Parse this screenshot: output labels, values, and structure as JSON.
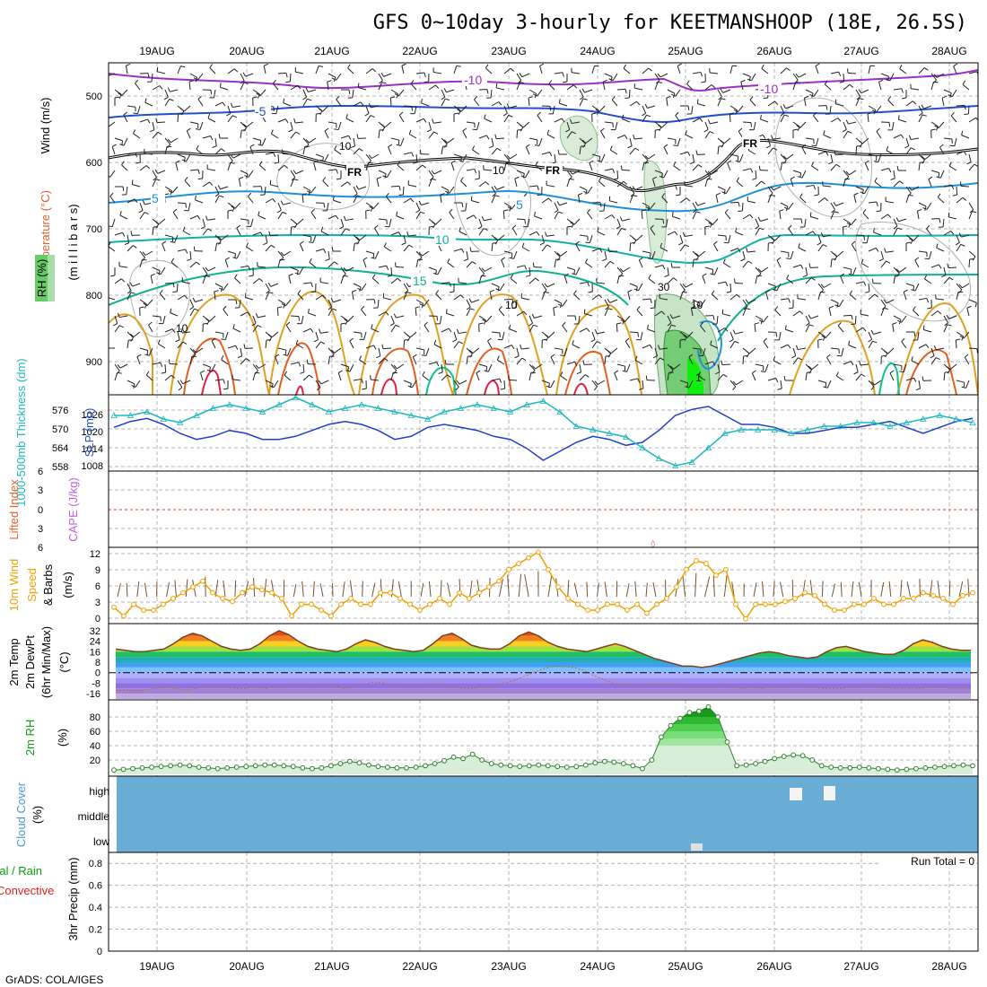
{
  "title": "GFS 0~10day 3-hourly for KEETMANSHOOP (18E, 26.5S)",
  "footer": "GrADS: COLA/IGES",
  "dates": [
    "19AUG",
    "20AUG",
    "21AUG",
    "22AUG",
    "23AUG",
    "24AUG",
    "25AUG",
    "26AUG",
    "27AUG",
    "28AUG"
  ],
  "colors": {
    "red": "#e02020",
    "green": "#10c010",
    "blue": "#1040e0",
    "purple": "#c060e0",
    "orange": "#f0a000",
    "cyan": "#20b8c0",
    "cloud": "#6aaed6"
  },
  "panels": {
    "upper": {
      "ylabel_wind": "Wind (m/s)",
      "ylabel_temp": "Temperature (°C)",
      "ylabel_rh": "RH (%)",
      "ylabel_mb": "(m i l l i b a r s)",
      "yticks": [
        "500",
        "600",
        "700",
        "800",
        "900"
      ],
      "contour_labels": [
        "-10",
        "-10",
        "-5",
        "5",
        "5",
        "10",
        "15",
        "FR",
        "FR",
        "FR",
        "10",
        "10",
        "10",
        "30",
        "10",
        "10",
        "1"
      ]
    },
    "thick": {
      "ylabel_left": "1000-500mb Thickness (dm)",
      "ylabel_right": "SLP (mb)",
      "yticks_left": [
        "576",
        "570",
        "564",
        "558"
      ],
      "yticks_right": [
        "1026",
        "1020",
        "1014",
        "1008"
      ]
    },
    "li": {
      "ylabel_left": "Lifted Index",
      "ylabel_right": "CAPE (J/kg)",
      "yticks": [
        "6",
        "3",
        "0",
        "3",
        "6"
      ]
    },
    "wind": {
      "ylabel_1": "10m Wind",
      "ylabel_2": "Speed",
      "ylabel_3": "& Barbs",
      "ylabel_units": "(m/s)",
      "yticks": [
        "12",
        "9",
        "6",
        "3",
        "0"
      ]
    },
    "temp": {
      "ylabel_1": "2m Temp",
      "ylabel_2": "2m DewPt",
      "ylabel_3": "(6hr Min/Max)",
      "ylabel_units": "(°C)",
      "yticks": [
        "32",
        "24",
        "16",
        "8",
        "0",
        "-8",
        "-16"
      ]
    },
    "rh": {
      "ylabel": "2m RH",
      "ylabel_units": "(%)",
      "yticks": [
        "80",
        "60",
        "40",
        "20"
      ]
    },
    "cloud": {
      "ylabel": "Cloud Cover",
      "ylabel_units": "(%)",
      "levels": [
        "high",
        "middle",
        "low"
      ]
    },
    "precip": {
      "ylabel_1": "Total / Rain",
      "ylabel_2": "Convective",
      "ylabel_3": "3hr Precip (mm)",
      "yticks": [
        "0.8",
        "0.6",
        "0.4",
        "0.2",
        "0"
      ],
      "run_total": "Run Total = 0"
    }
  },
  "chart_data": [
    {
      "type": "line",
      "title": "1000-500mb Thickness (dm) and SLP (mb)",
      "x": "time (3-hourly, 19AUG-28AUG)",
      "series": [
        {
          "name": "1000-500mb Thickness (dm)",
          "ylim": [
            557,
            577
          ],
          "values": [
            572,
            572,
            573,
            571,
            570,
            572,
            574,
            575,
            574,
            573,
            575,
            577,
            575,
            573,
            574,
            575,
            574,
            573,
            572,
            571,
            573,
            574,
            575,
            574,
            573,
            575,
            576,
            573,
            569,
            568,
            567,
            566,
            563,
            560,
            558,
            559,
            563,
            567,
            568,
            568,
            568,
            567,
            568,
            569,
            569,
            570,
            570,
            569,
            570,
            571,
            572,
            571,
            570
          ]
        },
        {
          "name": "SLP (mb)",
          "ylim": [
            1006,
            1030
          ],
          "values": [
            1020,
            1022,
            1023,
            1021,
            1018,
            1016,
            1017,
            1019,
            1018,
            1016,
            1016,
            1017,
            1019,
            1021,
            1022,
            1021,
            1019,
            1016,
            1017,
            1020,
            1021,
            1020,
            1019,
            1017,
            1016,
            1013,
            1009,
            1012,
            1015,
            1017,
            1016,
            1014,
            1015,
            1019,
            1024,
            1026,
            1027,
            1024,
            1021,
            1021,
            1020,
            1018,
            1018,
            1019,
            1020,
            1020,
            1021,
            1022,
            1020,
            1018,
            1020,
            1022,
            1023
          ]
        }
      ]
    },
    {
      "type": "line",
      "title": "10m Wind Speed (m/s)",
      "ylim": [
        0,
        12.5
      ],
      "values": [
        2.5,
        1,
        3,
        2,
        2,
        3,
        4,
        5,
        6,
        7,
        5,
        4,
        3.5,
        5,
        6,
        5.5,
        5,
        4,
        1,
        3,
        3,
        2,
        1,
        3,
        4,
        3,
        3,
        5,
        5,
        4,
        3,
        2,
        3,
        4,
        3,
        5,
        4,
        5,
        6,
        7,
        9,
        10,
        11,
        12,
        9,
        6,
        4,
        3,
        2,
        2,
        3,
        3,
        2,
        3,
        1.5,
        3,
        4,
        6,
        9,
        10.5,
        10,
        8,
        9,
        3,
        0.5,
        3,
        3,
        3,
        3.5,
        4,
        5,
        4.5,
        3,
        2,
        2,
        3,
        3,
        4,
        3,
        3,
        4,
        4,
        5,
        4.5,
        4,
        3,
        4.5,
        5
      ]
    },
    {
      "type": "area",
      "title": "2m Temp / 2m DewPt (°C)",
      "ylim": [
        -20,
        36
      ],
      "series": [
        {
          "name": "2m Temp",
          "values": [
            18,
            17,
            16,
            16,
            17,
            18,
            22,
            27,
            30,
            28,
            24,
            20,
            18,
            17,
            18,
            22,
            28,
            32,
            29,
            24,
            20,
            18,
            17,
            16,
            18,
            22,
            25,
            23,
            20,
            18,
            17,
            16,
            17,
            22,
            28,
            30,
            26,
            21,
            19,
            18,
            18,
            22,
            28,
            31,
            28,
            23,
            20,
            18,
            17,
            16,
            18,
            20,
            22,
            20,
            17,
            14,
            11,
            9,
            7,
            5,
            5,
            4,
            5,
            7,
            9,
            11,
            13,
            15,
            16,
            15,
            13,
            12,
            11,
            12,
            16,
            19,
            20,
            18,
            16,
            15,
            14,
            14,
            17,
            22,
            25,
            23,
            20,
            18,
            17,
            17
          ]
        },
        {
          "name": "2m DewPt",
          "values": [
            -14,
            -13,
            -14,
            -13,
            -12,
            -11,
            -12,
            -13,
            -12,
            -11,
            -11,
            -11,
            -12,
            -12,
            -11,
            -12,
            -11,
            -10,
            -10,
            -10,
            -11,
            -9,
            -10,
            -12,
            -10,
            -9,
            -7,
            -8,
            -10,
            -10,
            -11,
            -10,
            -9,
            -10,
            -11,
            -12,
            -12,
            -11,
            -10,
            -8,
            -6,
            -3,
            0,
            3,
            5,
            5,
            4,
            2,
            -2,
            -5,
            -8,
            -9,
            -9,
            -10,
            -9,
            -9,
            -9,
            -10,
            -11,
            -11,
            -11,
            -10,
            -11,
            -12,
            -11,
            -12,
            -11,
            -11,
            -10,
            -10,
            -11,
            -12,
            -12,
            -12,
            -11,
            -10,
            -10,
            -11,
            -12,
            -12,
            -12,
            -12,
            -11,
            -11,
            -12,
            -12,
            -12
          ]
        }
      ]
    },
    {
      "type": "area",
      "title": "2m RH (%)",
      "ylim": [
        0,
        100
      ],
      "values": [
        6,
        7,
        8,
        9,
        10,
        11,
        12,
        13,
        12,
        10,
        9,
        8,
        9,
        10,
        11,
        12,
        13,
        13,
        12,
        11,
        9,
        8,
        9,
        12,
        15,
        18,
        16,
        13,
        11,
        10,
        9,
        9,
        10,
        12,
        15,
        19,
        24,
        22,
        28,
        20,
        15,
        13,
        12,
        11,
        12,
        13,
        12,
        11,
        10,
        11,
        13,
        16,
        18,
        17,
        15,
        12,
        8,
        20,
        52,
        68,
        78,
        86,
        88,
        94,
        80,
        45,
        12,
        13,
        15,
        18,
        22,
        25,
        27,
        26,
        20,
        12,
        10,
        9,
        9,
        10,
        9,
        8,
        7,
        6,
        7,
        8,
        9,
        10,
        11,
        12,
        13,
        12
      ]
    },
    {
      "type": "table",
      "title": "Cloud Cover (%)",
      "levels": [
        "high",
        "middle",
        "low"
      ],
      "notes": "All levels shaded (overcast background) with small clear gaps at high level near 26AUG and a gap at low level near 25AUG"
    },
    {
      "type": "bar",
      "title": "3hr Precip (mm)",
      "ylim": [
        0,
        0.9
      ],
      "values": [
        0
      ],
      "run_total": 0
    }
  ]
}
